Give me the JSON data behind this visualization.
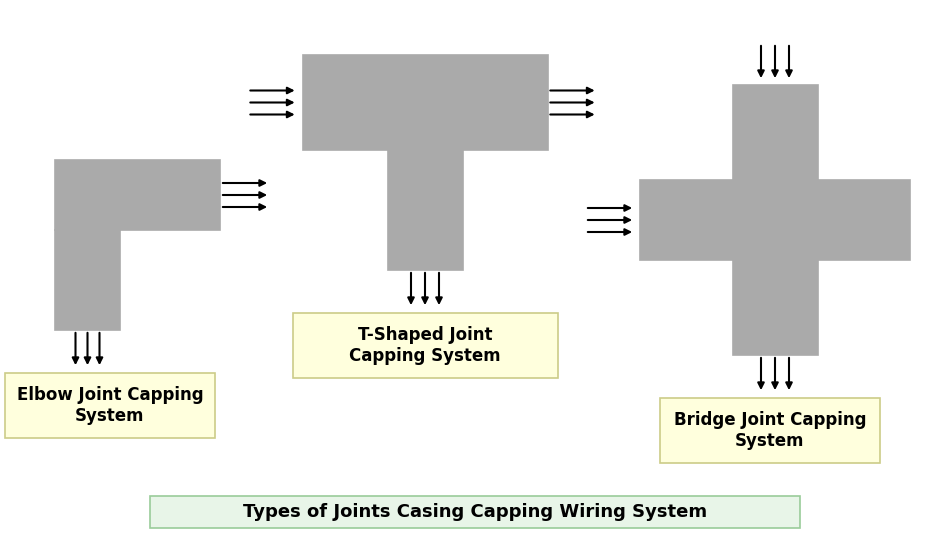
{
  "background_color": "#ffffff",
  "gray_color": "#aaaaaa",
  "label_bg_color": "#ffffdd",
  "title_bg_color": "#e8f5e8",
  "title_text": "Types of Joints Casing Capping Wiring System",
  "label_elbow": "Elbow Joint Capping\nSystem",
  "label_t": "T-Shaped Joint\nCapping System",
  "label_bridge": "Bridge Joint Capping\nSystem",
  "arrow_color": "#000000",
  "label_fontsize": 12,
  "title_fontsize": 13
}
